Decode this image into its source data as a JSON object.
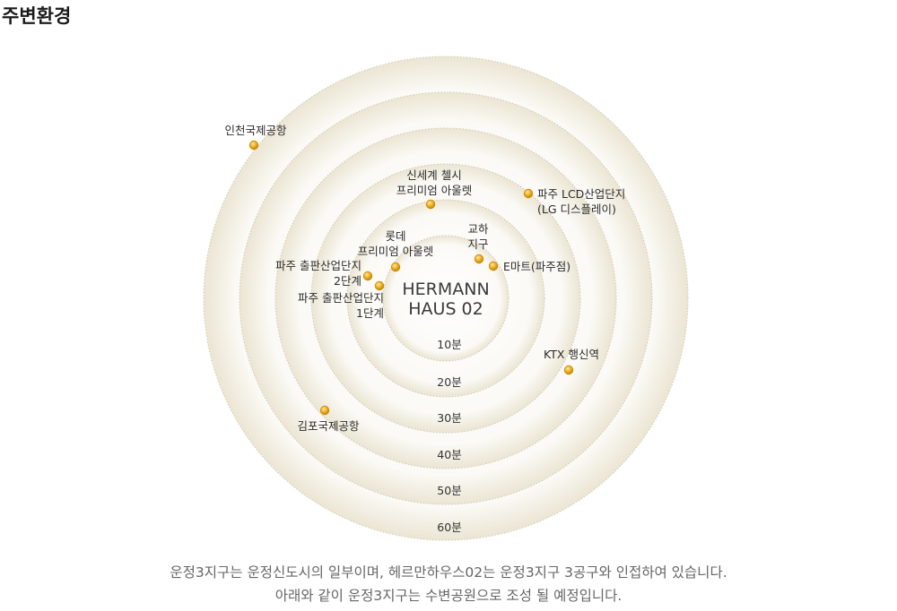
{
  "page_title": "주변환경",
  "center_label": [
    "HERMANN",
    "HAUS 02"
  ],
  "rings": [
    {
      "label": "10분"
    },
    {
      "label": "20분"
    },
    {
      "label": "30분"
    },
    {
      "label": "40분"
    },
    {
      "label": "50분"
    },
    {
      "label": "60분"
    }
  ],
  "places": [
    {
      "name": [
        "인천국제공항"
      ]
    },
    {
      "name": [
        "신세계 첼시",
        "프리미엄 아울렛"
      ]
    },
    {
      "name": [
        "파주 LCD산업단지",
        "(LG 디스플레이)"
      ]
    },
    {
      "name": [
        "롯데",
        "프리미엄 아울렛"
      ]
    },
    {
      "name": [
        "교하",
        "지구"
      ]
    },
    {
      "name": [
        "E마트(파주점)"
      ]
    },
    {
      "name": [
        "파주 출판산업단지",
        "2단계"
      ]
    },
    {
      "name": [
        "파주 출판산업단지",
        "1단계"
      ]
    },
    {
      "name": [
        "KTX 행신역"
      ]
    },
    {
      "name": [
        "김포국제공항"
      ]
    }
  ],
  "caption": [
    "운정3지구는 운정신도시의 일부이며, 헤르만하우스02는 운정3지구 3공구와 인접하여 있습니다.",
    "아래와 같이 운정3지구는 수변공원으로 조성 될 예정입니다."
  ],
  "colors": {
    "ring": "#f3efe3",
    "ring_edge": "#cfc8b4",
    "dot": "#f0b323",
    "dot_edge": "#c98a0c"
  }
}
